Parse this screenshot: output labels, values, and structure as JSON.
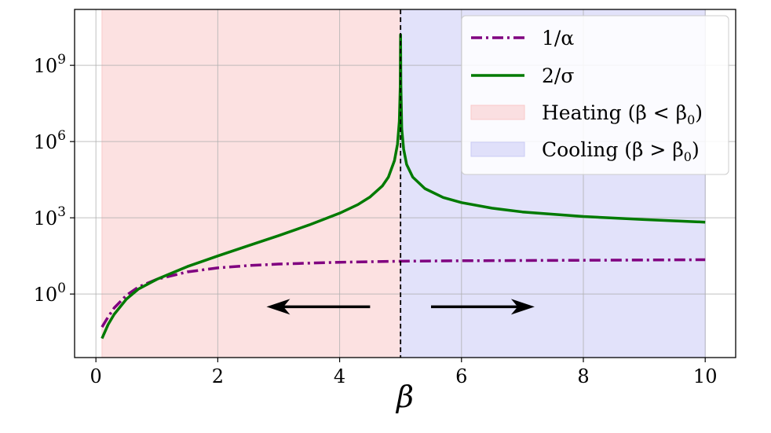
{
  "chart_data": {
    "type": "line",
    "xlabel": "β",
    "ylabel": "",
    "xlim": [
      -0.35,
      10.5
    ],
    "ylim_log10": [
      -2.5,
      11.2
    ],
    "y_scale": "log",
    "grid": true,
    "x_ticks": [
      0,
      2,
      4,
      6,
      8,
      10
    ],
    "x_tick_labels": [
      "0",
      "2",
      "4",
      "6",
      "8",
      "10"
    ],
    "y_ticks_log10": [
      0,
      3,
      6,
      9
    ],
    "y_tick_labels": [
      {
        "base": "10",
        "exp": "0"
      },
      {
        "base": "10",
        "exp": "3"
      },
      {
        "base": "10",
        "exp": "6"
      },
      {
        "base": "10",
        "exp": "9"
      }
    ],
    "vline_x": 5,
    "regions": [
      {
        "name": "Heating (β < β₀)",
        "label": "Heating (β < β",
        "sub": "0",
        "label_end": ")",
        "x": [
          0.1,
          5
        ],
        "color": "#f9c9c9"
      },
      {
        "name": "Cooling (β > β₀)",
        "label": "Cooling (β > β",
        "sub": "0",
        "label_end": ")",
        "x": [
          5,
          10
        ],
        "color": "#cacbf5"
      }
    ],
    "series": [
      {
        "name": "1/α",
        "color": "#800080",
        "dash": "dashdot",
        "points": [
          [
            0.1,
            -1.3
          ],
          [
            0.2,
            -0.9
          ],
          [
            0.3,
            -0.55
          ],
          [
            0.5,
            -0.05
          ],
          [
            0.7,
            0.28
          ],
          [
            1.0,
            0.58
          ],
          [
            1.5,
            0.87
          ],
          [
            2.0,
            1.03
          ],
          [
            2.5,
            1.12
          ],
          [
            3.0,
            1.18
          ],
          [
            4.0,
            1.25
          ],
          [
            5.0,
            1.29
          ],
          [
            6.0,
            1.31
          ],
          [
            8.0,
            1.33
          ],
          [
            10.0,
            1.35
          ]
        ]
      },
      {
        "name": "2/σ",
        "color": "#007a00",
        "dash": "solid",
        "points": [
          [
            0.1,
            -1.75
          ],
          [
            0.2,
            -1.2
          ],
          [
            0.3,
            -0.8
          ],
          [
            0.5,
            -0.2
          ],
          [
            0.7,
            0.2
          ],
          [
            1.0,
            0.58
          ],
          [
            1.5,
            1.08
          ],
          [
            2.0,
            1.5
          ],
          [
            2.5,
            1.9
          ],
          [
            3.0,
            2.3
          ],
          [
            3.5,
            2.72
          ],
          [
            4.0,
            3.18
          ],
          [
            4.3,
            3.52
          ],
          [
            4.5,
            3.82
          ],
          [
            4.7,
            4.25
          ],
          [
            4.8,
            4.6
          ],
          [
            4.9,
            5.25
          ],
          [
            4.95,
            5.9
          ],
          [
            4.98,
            6.8
          ],
          [
            4.995,
            8.2
          ],
          [
            5.0,
            10.2
          ],
          [
            5.005,
            8.2
          ],
          [
            5.02,
            6.5
          ],
          [
            5.05,
            5.7
          ],
          [
            5.1,
            5.1
          ],
          [
            5.2,
            4.6
          ],
          [
            5.4,
            4.15
          ],
          [
            5.7,
            3.8
          ],
          [
            6.0,
            3.6
          ],
          [
            6.5,
            3.38
          ],
          [
            7.0,
            3.23
          ],
          [
            8.0,
            3.05
          ],
          [
            9.0,
            2.93
          ],
          [
            10.0,
            2.83
          ]
        ]
      }
    ],
    "annotations": [
      {
        "kind": "arrow-left",
        "x_from": 4.5,
        "x_to": 2.8,
        "y_log10": -0.5
      },
      {
        "kind": "arrow-right",
        "x_from": 5.5,
        "x_to": 7.2,
        "y_log10": -0.5
      }
    ]
  }
}
